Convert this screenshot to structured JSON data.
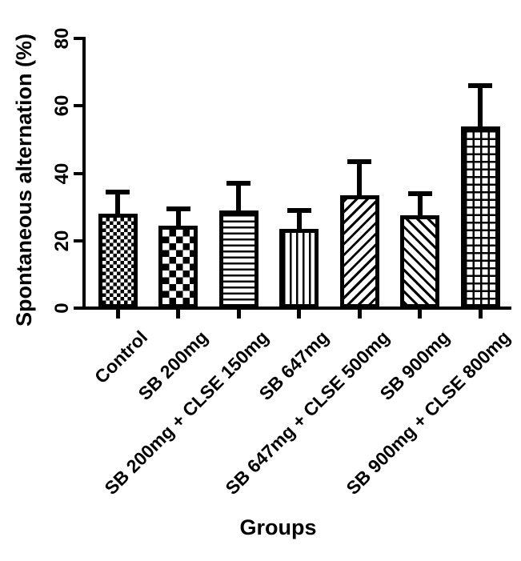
{
  "chart_data": {
    "type": "bar",
    "title": "",
    "xlabel": "Groups",
    "ylabel": "Spontaneous alternation (%)",
    "ylim": [
      0,
      80
    ],
    "yticks": [
      0,
      20,
      40,
      60,
      80
    ],
    "categories": [
      "Control",
      "SB 200mg",
      "SB 200mg + CLSE 150mg",
      "SB 647mg",
      "SB 647mg + CLSE 500mg",
      "SB 900mg",
      "SB 900mg + CLSE 800mg"
    ],
    "series": [
      {
        "name": "Spontaneous alternation (%)",
        "values": [
          28,
          24.5,
          29,
          23.5,
          33.5,
          27.5,
          54
        ],
        "errors_upper": [
          6.5,
          5,
          8,
          5.5,
          10,
          6.5,
          12
        ]
      }
    ],
    "bar_patterns": [
      "checker-fine",
      "checker-coarse",
      "hlines",
      "vlines",
      "diag-up",
      "diag-down",
      "grid"
    ],
    "bar_fill": "#ffffff",
    "ink_color": "#000000",
    "grid": false,
    "legend": "none",
    "error_bars": "upper-only-with-caps"
  }
}
